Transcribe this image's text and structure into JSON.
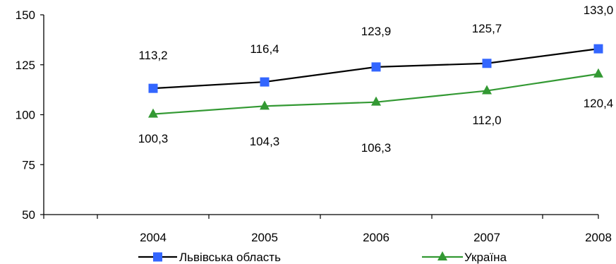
{
  "chart_data": {
    "type": "line",
    "x": [
      "2004",
      "2005",
      "2006",
      "2007",
      "2008"
    ],
    "series": [
      {
        "name": "Львівська область",
        "values": [
          113.2,
          116.4,
          123.9,
          125.7,
          133.0
        ],
        "labels": [
          "113,2",
          "116,4",
          "123,9",
          "125,7",
          "133,0"
        ],
        "line_color": "#000000",
        "marker_color": "#3366ff",
        "marker": "square"
      },
      {
        "name": "Україна",
        "values": [
          100.3,
          104.3,
          106.3,
          112.0,
          120.4
        ],
        "labels": [
          "100,3",
          "104,3",
          "106,3",
          "112,0",
          "120,4"
        ],
        "line_color": "#339933",
        "marker_color": "#339933",
        "marker": "triangle"
      }
    ],
    "yticks": [
      "50",
      "75",
      "100",
      "125",
      "150"
    ],
    "ylim": [
      50,
      150
    ],
    "title": "",
    "xlabel": "",
    "ylabel": "",
    "grid": false,
    "legend_position": "bottom"
  }
}
